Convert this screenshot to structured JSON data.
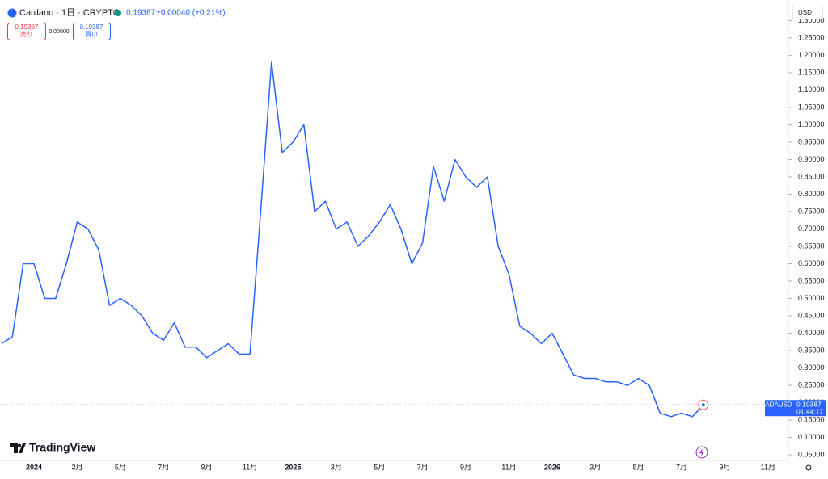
{
  "header": {
    "symbol": "Cardano · 1日 · CRYPTO",
    "price": "0.19387",
    "change": "+0.00040 (+0.21%)",
    "sell_price": "0.19387",
    "sell_label": "売り",
    "spread": "0.00000",
    "buy_price": "0.19387",
    "buy_label": "買い"
  },
  "currency": "USD",
  "price_tag": {
    "symbol": "ADAUSD",
    "price": "0.19387",
    "countdown": "01:44:17"
  },
  "brand": "TradingView",
  "chart_data": {
    "type": "line",
    "color": "#2962ff",
    "categories": [
      null,
      null,
      null,
      "2024",
      null,
      null,
      null,
      "3月",
      null,
      null,
      null,
      "5月",
      null,
      null,
      null,
      "7月",
      null,
      null,
      null,
      "9月",
      null,
      null,
      null,
      "11月",
      null,
      null,
      null,
      "2025",
      null,
      null,
      null,
      "3月",
      null,
      null,
      null,
      "5月",
      null,
      null,
      null,
      "7月",
      null,
      null,
      null,
      "9月",
      null,
      null,
      null,
      "11月",
      null,
      null,
      null,
      "2026",
      null,
      null,
      null,
      "3月",
      null,
      null,
      null,
      "5月",
      null,
      null,
      null,
      "7月",
      null,
      null,
      null,
      "9月",
      null,
      null,
      null,
      "11月",
      null,
      null
    ],
    "values": [
      0.37,
      0.39,
      0.6,
      0.6,
      0.5,
      0.5,
      0.6,
      0.72,
      0.7,
      0.64,
      0.48,
      0.5,
      0.48,
      0.45,
      0.4,
      0.38,
      0.43,
      0.36,
      0.36,
      0.33,
      0.35,
      0.37,
      0.34,
      0.34,
      0.75,
      1.18,
      0.92,
      0.95,
      1.0,
      0.75,
      0.78,
      0.7,
      0.72,
      0.65,
      0.68,
      0.72,
      0.77,
      0.7,
      0.6,
      0.66,
      0.88,
      0.78,
      0.9,
      0.85,
      0.82,
      0.85,
      0.65,
      0.57,
      0.42,
      0.4,
      0.37,
      0.4,
      0.34,
      0.28,
      0.27,
      0.27,
      0.26,
      0.26,
      0.25,
      0.27,
      0.25,
      0.17,
      0.16,
      0.17,
      0.16,
      0.19387,
      null,
      null,
      null,
      null,
      null,
      null,
      null,
      null
    ],
    "ylim": [
      0.034,
      1.359
    ],
    "yticks": [
      {
        "value": 0.05,
        "label": "0.05000"
      },
      {
        "value": 0.1,
        "label": "0.10000"
      },
      {
        "value": 0.15,
        "label": "0.15000"
      },
      {
        "value": 0.2,
        "label": "0.20000"
      },
      {
        "value": 0.25,
        "label": "0.25000"
      },
      {
        "value": 0.3,
        "label": "0.30000"
      },
      {
        "value": 0.35,
        "label": "0.35000"
      },
      {
        "value": 0.4,
        "label": "0.40000"
      },
      {
        "value": 0.45,
        "label": "0.45000"
      },
      {
        "value": 0.5,
        "label": "0.50000"
      },
      {
        "value": 0.55,
        "label": "0.55000"
      },
      {
        "value": 0.6,
        "label": "0.60000"
      },
      {
        "value": 0.65,
        "label": "0.65000"
      },
      {
        "value": 0.7,
        "label": "0.70000"
      },
      {
        "value": 0.75,
        "label": "0.75000"
      },
      {
        "value": 0.8,
        "label": "0.80000"
      },
      {
        "value": 0.85,
        "label": "0.85000"
      },
      {
        "value": 0.9,
        "label": "0.90000"
      },
      {
        "value": 0.95,
        "label": "0.95000"
      },
      {
        "value": 1.0,
        "label": "1.00000"
      },
      {
        "value": 1.05,
        "label": "1.05000"
      },
      {
        "value": 1.1,
        "label": "1.10000"
      },
      {
        "value": 1.15,
        "label": "1.15000"
      },
      {
        "value": 1.2,
        "label": "1.20000"
      },
      {
        "value": 1.25,
        "label": "1.25000"
      },
      {
        "value": 1.3,
        "label": "1.30000"
      }
    ]
  }
}
